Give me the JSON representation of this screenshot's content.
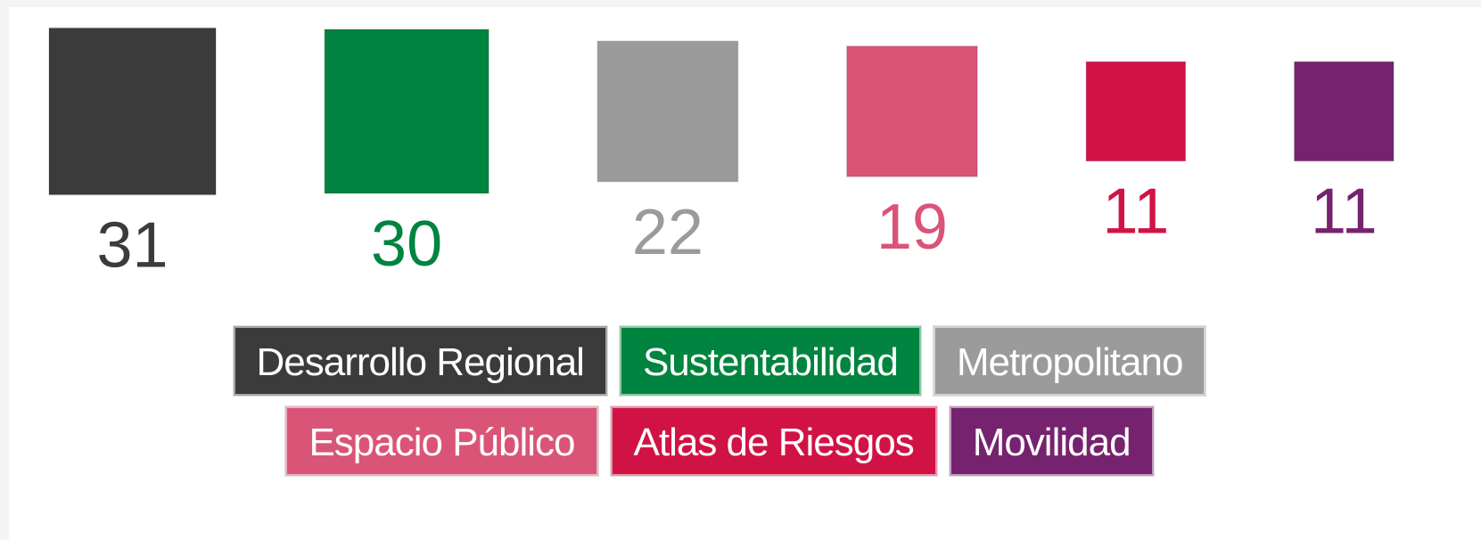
{
  "chart_data": {
    "type": "square",
    "categories": [
      "Desarrollo Regional",
      "Sustentabilidad",
      "Metropolitano",
      "Espacio Público",
      "Atlas de Riesgos",
      "Movilidad"
    ],
    "values": [
      31,
      30,
      22,
      19,
      11,
      11
    ],
    "colors": [
      "#3b3b3b",
      "#00843f",
      "#9b9b9b",
      "#da5478",
      "#d11245",
      "#76236f"
    ]
  }
}
